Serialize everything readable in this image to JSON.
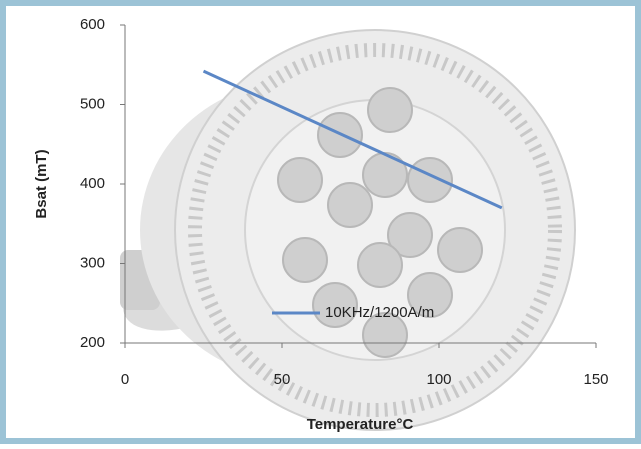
{
  "chart_data": {
    "type": "line",
    "x_label": "Temperature°C",
    "y_label": "Bsat (mT)",
    "x": [
      25,
      120
    ],
    "series": [
      {
        "name": "10KHz/1200A/m",
        "color": "#5b87c6",
        "values": [
          542,
          370
        ]
      }
    ],
    "xlim": [
      0,
      150
    ],
    "xticks": [
      0,
      50,
      100,
      150
    ],
    "ylim": [
      200,
      600
    ],
    "yticks": [
      200,
      300,
      400,
      500,
      600
    ],
    "grid": false
  }
}
